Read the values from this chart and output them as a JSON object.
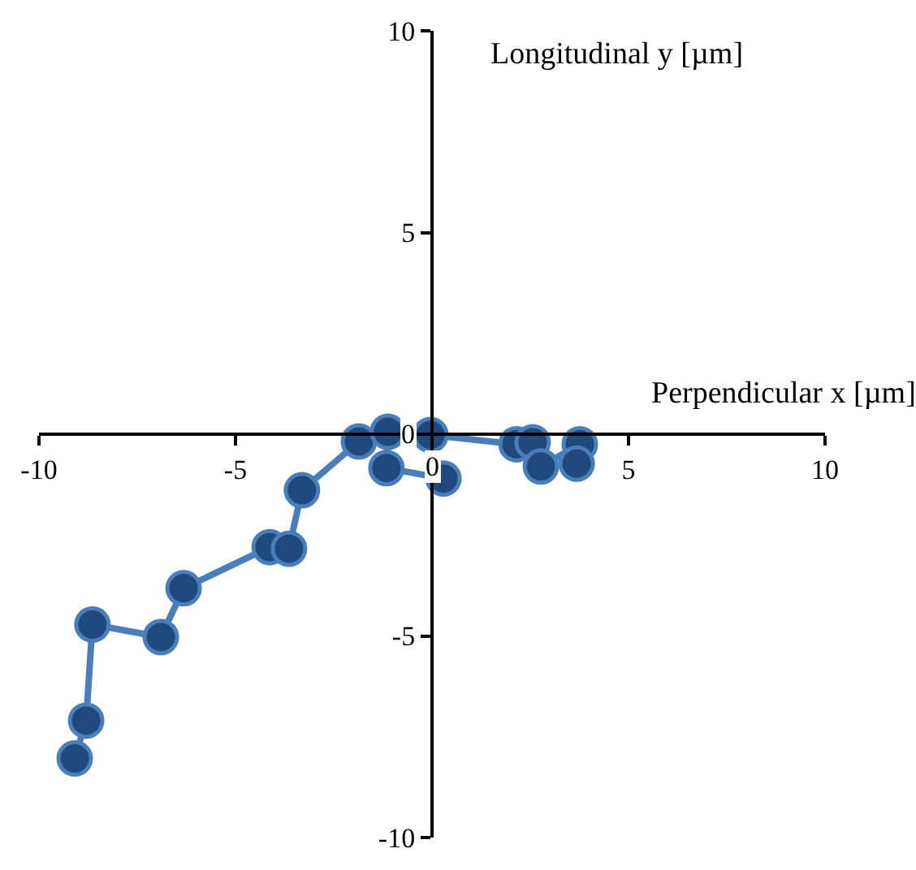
{
  "chart_data": {
    "type": "line",
    "xlabel": "Perpendicular x [µm]",
    "ylabel": "Longitudinal y [µm]",
    "x": [
      -9.09,
      -8.8,
      -8.64,
      -6.9,
      -6.32,
      -4.13,
      -3.64,
      -3.31,
      -1.86,
      -1.12,
      -1.16,
      0.29,
      -0.04,
      2.15,
      2.56,
      2.77,
      3.76,
      3.68
    ],
    "series": [
      {
        "color": "#1f497d",
        "values": [
          -8.04,
          -7.1,
          -4.72,
          -5.03,
          -3.82,
          -2.8,
          -2.84,
          -1.39,
          -0.18,
          0.06,
          -0.84,
          -1.1,
          -0.02,
          -0.25,
          -0.2,
          -0.8,
          -0.25,
          -0.73
        ]
      }
    ],
    "xlim": [
      -10,
      10
    ],
    "ylim": [
      -10,
      10
    ],
    "xticks": [
      -10,
      -5,
      0,
      5,
      10
    ],
    "yticks": [
      -10,
      -5,
      0,
      5,
      10
    ],
    "marker": "circle",
    "line_style": "solid"
  }
}
